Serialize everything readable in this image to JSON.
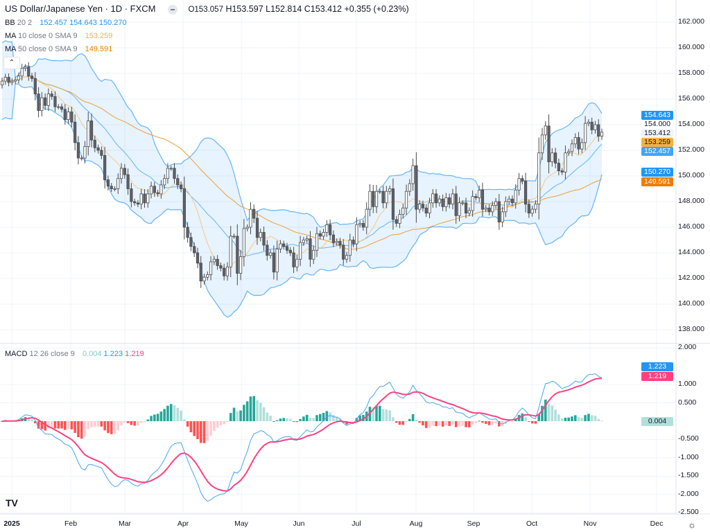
{
  "header": {
    "symbol": "US Dollar/Japanese Yen · 1D · FXCM",
    "open": "O153.057",
    "high": "H153.597",
    "low": "L152.814",
    "close": "C153.412",
    "change": "+0.355 (+0.23%)"
  },
  "indicators": {
    "bb": {
      "label": "BB",
      "params": "20 2",
      "basis": "152.457",
      "upper": "154.643",
      "lower": "150.270",
      "color": "#2196f3"
    },
    "ma10": {
      "label": "MA",
      "params": "10 close 0 SMA 9",
      "value": "153.259",
      "color": "#f5b041"
    },
    "ma50": {
      "label": "MA",
      "params": "50 close 0 SMA 9",
      "value": "149.591",
      "color": "#ef7d00"
    },
    "macd": {
      "label": "MACD",
      "params": "12 26 close 9",
      "hist": "0.004",
      "macd": "1.223",
      "signal": "1.219",
      "macd_color": "#42a5f5",
      "signal_color": "#ff4081",
      "hist_color": "#26a69a"
    }
  },
  "price_axis": [
    "162.000",
    "160.000",
    "158.000",
    "156.000",
    "154.000",
    "152.000",
    "150.000",
    "148.000",
    "146.000",
    "144.000",
    "142.000",
    "140.000",
    "138.000"
  ],
  "price_tags": {
    "bb_upper": "154.643",
    "high_mark": "154.000",
    "last": "153.412",
    "ma10": "153.259",
    "bb_basis": "152.457",
    "bb_lower": "150.270",
    "ma50": "149.591"
  },
  "macd_axis": [
    "2.000",
    "1.000",
    "0.500",
    "-0.500",
    "-1.000",
    "-1.500",
    "-2.000",
    "-2.500"
  ],
  "macd_tags": {
    "macd": "1.223",
    "signal": "1.219",
    "hist": "0.004"
  },
  "time_axis": [
    "2025",
    "Feb",
    "Mar",
    "Apr",
    "May",
    "Jun",
    "Jul",
    "Aug",
    "Sep",
    "Oct",
    "Nov",
    "Dec"
  ],
  "chart_data": {
    "type": "candlestick",
    "title": "US Dollar/Japanese Yen · 1D · FXCM",
    "ylim": [
      137,
      162.5
    ],
    "macd_ylim": [
      -2.6,
      2.1
    ],
    "grid": true,
    "close": [
      157.4,
      157.7,
      157.3,
      157.4,
      157.5,
      157.8,
      158.4,
      158.5,
      157.8,
      157.6,
      156.4,
      155.1,
      156.1,
      155.5,
      156.4,
      156.2,
      155.4,
      155.4,
      155.2,
      154.4,
      155.0,
      154.2,
      152.6,
      151.4,
      151.4,
      152.3,
      154.3,
      152.8,
      152.2,
      152.0,
      151.6,
      149.7,
      149.2,
      149.0,
      149.0,
      149.8,
      150.6,
      150.1,
      149.0,
      148.0,
      147.9,
      147.8,
      148.6,
      147.9,
      148.6,
      149.2,
      148.7,
      148.6,
      149.3,
      149.8,
      150.6,
      150.6,
      149.8,
      149.3,
      149.0,
      146.0,
      145.2,
      144.5,
      144.0,
      143.2,
      141.8,
      142.1,
      142.3,
      143.3,
      143.5,
      143.0,
      142.8,
      142.2,
      142.9,
      145.3,
      145.3,
      142.4,
      143.7,
      145.9,
      146.0,
      147.4,
      146.7,
      145.2,
      145.6,
      144.6,
      143.8,
      144.0,
      142.5,
      144.3,
      144.7,
      144.5,
      144.2,
      144.0,
      142.9,
      143.5,
      144.8,
      145.0,
      145.1,
      143.5,
      144.2,
      145.5,
      145.3,
      145.6,
      146.2,
      145.4,
      144.8,
      144.9,
      144.6,
      143.5,
      143.8,
      145.0,
      144.7,
      146.2,
      146.3,
      146.0,
      147.4,
      148.8,
      147.6,
      148.8,
      148.8,
      147.9,
      148.8,
      149.0,
      146.6,
      146.3,
      147.0,
      147.5,
      148.8,
      149.4,
      150.8,
      147.4,
      147.8,
      147.5,
      147.1,
      147.9,
      148.6,
      147.9,
      148.2,
      147.6,
      148.3,
      147.8,
      148.6,
      146.9,
      147.9,
      147.9,
      147.1,
      147.3,
      148.4,
      148.3,
      148.9,
      147.4,
      147.5,
      147.2,
      147.7,
      148.0,
      146.4,
      147.2,
      148.0,
      148.2,
      147.9,
      148.9,
      149.8,
      149.6,
      147.8,
      147.1,
      147.4,
      147.8,
      151.8,
      153.2,
      153.9,
      151.1,
      151.8,
      151.0,
      150.4,
      150.3,
      151.8,
      151.9,
      152.5,
      153.0,
      152.1,
      152.6,
      154.1,
      154.2,
      153.6,
      154.0,
      153.1,
      153.412
    ]
  },
  "colors": {
    "up_candle": "#ffffff",
    "down_candle": "#5d606b",
    "candle_border": "#4a4a4a",
    "bb_fill": "#e3f2fd",
    "bb_line": "#64b5f6",
    "hist_up_strong": "#26a69a",
    "hist_up_weak": "#b2dfdb",
    "hist_down_strong": "#ff5252",
    "hist_down_weak": "#ffcdd2"
  }
}
